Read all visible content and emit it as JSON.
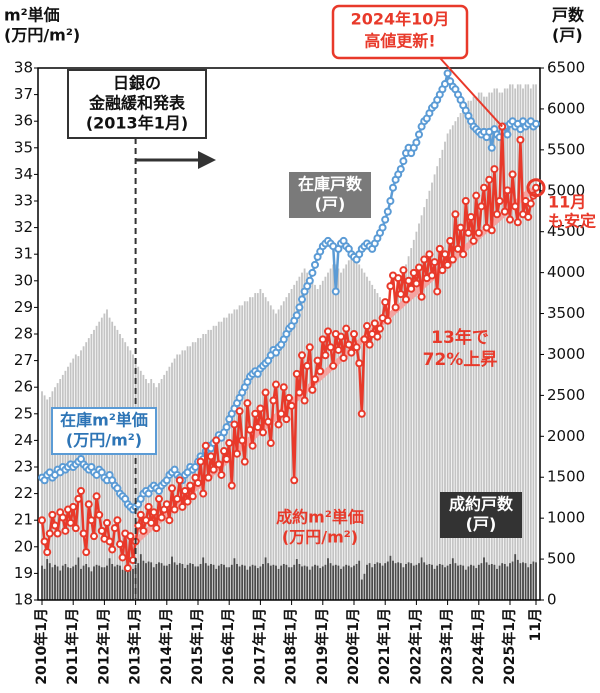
{
  "chart_data": {
    "type": "combo",
    "y_label": [
      "m²単価",
      "(万円/m²)"
    ],
    "y2_label": [
      "戸数",
      "(戸)"
    ],
    "categories": [
      "2010年1月",
      null,
      null,
      null,
      null,
      null,
      null,
      null,
      null,
      null,
      null,
      null,
      "2011年1月",
      null,
      null,
      null,
      null,
      null,
      null,
      null,
      null,
      null,
      null,
      null,
      "2012年1月",
      null,
      null,
      null,
      null,
      null,
      null,
      null,
      null,
      null,
      null,
      null,
      "2013年1月",
      null,
      null,
      null,
      null,
      null,
      null,
      null,
      null,
      null,
      null,
      null,
      "2014年1月",
      null,
      null,
      null,
      null,
      null,
      null,
      null,
      null,
      null,
      null,
      null,
      "2015年1月",
      null,
      null,
      null,
      null,
      null,
      null,
      null,
      null,
      null,
      null,
      null,
      "2016年1月",
      null,
      null,
      null,
      null,
      null,
      null,
      null,
      null,
      null,
      null,
      null,
      "2017年1月",
      null,
      null,
      null,
      null,
      null,
      null,
      null,
      null,
      null,
      null,
      null,
      "2018年1月",
      null,
      null,
      null,
      null,
      null,
      null,
      null,
      null,
      null,
      null,
      null,
      "2019年1月",
      null,
      null,
      null,
      null,
      null,
      null,
      null,
      null,
      null,
      null,
      null,
      "2020年1月",
      null,
      null,
      null,
      null,
      null,
      null,
      null,
      null,
      null,
      null,
      null,
      "2021年1月",
      null,
      null,
      null,
      null,
      null,
      null,
      null,
      null,
      null,
      null,
      null,
      "2022年1月",
      null,
      null,
      null,
      null,
      null,
      null,
      null,
      null,
      null,
      null,
      null,
      "2023年1月",
      null,
      null,
      null,
      null,
      null,
      null,
      null,
      null,
      null,
      null,
      null,
      "2024年1月",
      null,
      null,
      null,
      null,
      null,
      null,
      null,
      null,
      null,
      null,
      null,
      "2025年1月",
      null,
      null,
      null,
      null,
      null,
      null,
      null,
      null,
      null,
      "11月"
    ],
    "ylim": [
      18,
      38
    ],
    "yticks": [
      18,
      19,
      20,
      21,
      22,
      23,
      24,
      25,
      26,
      27,
      28,
      29,
      30,
      31,
      32,
      33,
      34,
      35,
      36,
      37,
      38
    ],
    "y2lim": [
      0,
      6500
    ],
    "y2ticks": [
      0,
      500,
      1000,
      1500,
      2000,
      2500,
      3000,
      3500,
      4000,
      4500,
      5000,
      5500,
      6000,
      6500
    ],
    "series": [
      {
        "name": "在庫戸数",
        "unit": "(戸)",
        "type": "bar",
        "axis": "y2",
        "color": "#c4c4c4",
        "values": [
          2550,
          2500,
          2450,
          2480,
          2550,
          2600,
          2650,
          2700,
          2750,
          2800,
          2850,
          2900,
          2950,
          3000,
          2980,
          3050,
          3100,
          3150,
          3200,
          3250,
          3300,
          3350,
          3400,
          3450,
          3500,
          3550,
          3450,
          3400,
          3350,
          3300,
          3250,
          3200,
          3150,
          3100,
          3050,
          3000,
          2900,
          2850,
          2800,
          2750,
          2700,
          2650,
          2700,
          2650,
          2600,
          2650,
          2700,
          2750,
          2800,
          2850,
          2900,
          2950,
          3000,
          3000,
          3050,
          3050,
          3100,
          3100,
          3150,
          3150,
          3200,
          3200,
          3250,
          3250,
          3300,
          3300,
          3350,
          3350,
          3400,
          3400,
          3450,
          3450,
          3500,
          3500,
          3550,
          3550,
          3600,
          3600,
          3650,
          3650,
          3700,
          3700,
          3750,
          3750,
          3800,
          3750,
          3700,
          3650,
          3600,
          3550,
          3500,
          3550,
          3600,
          3650,
          3700,
          3750,
          3800,
          3850,
          3900,
          3950,
          4000,
          4050,
          4000,
          3950,
          3900,
          3850,
          3800,
          3850,
          3900,
          3950,
          4000,
          4050,
          4100,
          4100,
          4050,
          4000,
          4050,
          4100,
          4150,
          4200,
          4200,
          4150,
          4100,
          4050,
          4000,
          3950,
          3900,
          3850,
          3800,
          3750,
          3700,
          3650,
          3600,
          3550,
          3500,
          3600,
          3700,
          3800,
          3900,
          4000,
          4100,
          4200,
          4300,
          4400,
          4500,
          4600,
          4700,
          4800,
          4900,
          5000,
          5100,
          5200,
          5300,
          5400,
          5500,
          5600,
          5700,
          5750,
          5800,
          5850,
          5900,
          5950,
          6000,
          6050,
          6100,
          6100,
          6150,
          6150,
          6200,
          6200,
          6150,
          6150,
          6200,
          6200,
          6250,
          6250,
          6200,
          6200,
          6250,
          6250,
          6300,
          6300,
          6250,
          6300,
          6300,
          6250,
          6300,
          6300,
          6250,
          6300,
          6300
        ]
      },
      {
        "name": "成約戸数",
        "unit": "(戸)",
        "type": "bar",
        "axis": "y2",
        "color": "#4a4a4a",
        "values": [
          420,
          380,
          500,
          450,
          400,
          430,
          410,
          360,
          420,
          440,
          400,
          390,
          410,
          430,
          520,
          380,
          420,
          440,
          400,
          350,
          410,
          430,
          420,
          400,
          400,
          420,
          510,
          440,
          410,
          430,
          420,
          370,
          400,
          420,
          410,
          380,
          430,
          450,
          560,
          480,
          450,
          470,
          460,
          400,
          440,
          460,
          450,
          420,
          420,
          440,
          530,
          460,
          430,
          450,
          440,
          390,
          430,
          450,
          440,
          410,
          410,
          440,
          520,
          450,
          420,
          440,
          430,
          380,
          420,
          440,
          430,
          400,
          400,
          430,
          510,
          440,
          410,
          430,
          420,
          370,
          410,
          430,
          420,
          390,
          410,
          440,
          520,
          450,
          420,
          430,
          420,
          380,
          420,
          440,
          430,
          400,
          400,
          430,
          500,
          440,
          410,
          420,
          410,
          370,
          410,
          430,
          420,
          390,
          410,
          430,
          510,
          450,
          420,
          430,
          420,
          380,
          410,
          430,
          420,
          400,
          420,
          440,
          480,
          250,
          320,
          430,
          450,
          400,
          440,
          460,
          450,
          420,
          450,
          470,
          540,
          480,
          450,
          460,
          450,
          400,
          440,
          460,
          450,
          420,
          430,
          450,
          520,
          460,
          430,
          440,
          430,
          380,
          420,
          440,
          430,
          400,
          420,
          440,
          510,
          450,
          420,
          430,
          420,
          370,
          410,
          430,
          420,
          390,
          430,
          450,
          520,
          460,
          430,
          440,
          430,
          380,
          420,
          450,
          440,
          410,
          450,
          470,
          560,
          490,
          450,
          460,
          450,
          400,
          440,
          470,
          460
        ]
      },
      {
        "name": "在庫m²単価",
        "unit": "(万円/m²)",
        "type": "line",
        "axis": "y",
        "color": "#5b9bd5",
        "values": [
          22.6,
          22.5,
          22.7,
          22.8,
          22.6,
          22.7,
          22.9,
          22.8,
          23.0,
          22.9,
          23.0,
          23.1,
          23.0,
          23.1,
          23.2,
          23.3,
          23.1,
          23.0,
          22.9,
          23.0,
          22.8,
          22.7,
          22.9,
          22.8,
          22.6,
          22.5,
          22.7,
          22.5,
          22.3,
          22.2,
          22.0,
          21.9,
          21.8,
          21.6,
          21.5,
          21.4,
          21.5,
          21.6,
          21.8,
          22.0,
          22.1,
          22.0,
          22.2,
          22.3,
          22.2,
          22.1,
          22.3,
          22.4,
          22.5,
          22.7,
          22.8,
          22.9,
          22.7,
          22.6,
          22.5,
          22.7,
          22.8,
          23.0,
          22.9,
          23.0,
          23.2,
          23.4,
          23.3,
          23.6,
          23.8,
          23.7,
          23.9,
          24.0,
          24.2,
          24.1,
          24.3,
          24.5,
          24.8,
          25.0,
          25.2,
          25.4,
          25.6,
          25.8,
          26.0,
          26.2,
          26.4,
          26.5,
          26.6,
          26.5,
          26.7,
          26.8,
          26.9,
          27.0,
          27.2,
          27.4,
          27.3,
          27.5,
          27.6,
          27.8,
          28.0,
          28.2,
          28.3,
          28.5,
          28.7,
          29.0,
          29.3,
          29.6,
          29.8,
          30.0,
          30.3,
          30.6,
          30.9,
          31.1,
          31.3,
          31.4,
          31.5,
          31.4,
          31.3,
          29.6,
          31.2,
          31.4,
          31.5,
          31.3,
          31.2,
          31.0,
          30.9,
          30.8,
          31.0,
          31.2,
          31.3,
          31.4,
          31.3,
          31.2,
          31.4,
          31.6,
          31.8,
          32.0,
          32.3,
          32.6,
          33.0,
          33.5,
          33.8,
          34.0,
          34.2,
          34.5,
          34.8,
          35.0,
          34.8,
          35.0,
          35.2,
          35.5,
          35.8,
          36.0,
          36.1,
          36.3,
          36.5,
          36.6,
          36.8,
          37.0,
          37.2,
          37.4,
          37.8,
          37.5,
          37.3,
          37.2,
          37.0,
          36.8,
          36.6,
          36.4,
          36.2,
          36.0,
          35.8,
          35.7,
          35.6,
          35.5,
          35.6,
          35.4,
          35.6,
          35.0,
          35.7,
          35.5,
          35.4,
          35.6,
          35.8,
          35.5,
          35.9,
          36.0,
          35.8,
          35.9,
          35.7,
          36.0,
          35.8,
          35.9,
          36.0,
          35.8,
          35.9
        ]
      },
      {
        "name": "成約m²単価",
        "unit": "(万円/m²)",
        "type": "line",
        "axis": "y",
        "color": "#e8392a",
        "values": [
          21.0,
          20.2,
          19.8,
          20.5,
          21.2,
          20.8,
          20.5,
          21.3,
          21.1,
          20.6,
          21.4,
          20.9,
          21.5,
          20.7,
          21.8,
          22.1,
          20.5,
          19.8,
          21.6,
          21.0,
          20.4,
          21.9,
          21.2,
          20.6,
          20.3,
          20.9,
          20.2,
          19.9,
          20.7,
          21.0,
          20.1,
          19.6,
          20.5,
          19.2,
          20.4,
          19.5,
          20.2,
          20.8,
          21.2,
          20.6,
          21.0,
          21.5,
          20.9,
          21.3,
          20.7,
          21.8,
          21.1,
          21.4,
          21.6,
          21.0,
          22.2,
          21.4,
          21.8,
          22.5,
          21.5,
          22.1,
          21.7,
          22.3,
          21.9,
          22.6,
          22.4,
          23.2,
          22.0,
          23.8,
          22.6,
          23.4,
          22.9,
          24.0,
          23.1,
          22.7,
          23.6,
          23.3,
          23.9,
          22.3,
          24.6,
          23.5,
          25.1,
          24.0,
          23.2,
          25.4,
          24.4,
          23.8,
          25.0,
          24.5,
          25.2,
          24.3,
          25.8,
          24.7,
          23.9,
          25.5,
          26.1,
          24.6,
          25.0,
          26.0,
          24.8,
          25.6,
          25.3,
          22.5,
          26.5,
          25.8,
          27.2,
          25.5,
          26.8,
          27.5,
          25.9,
          26.3,
          27.0,
          26.6,
          27.8,
          27.2,
          28.1,
          27.5,
          26.8,
          28.0,
          27.4,
          27.9,
          27.1,
          28.2,
          27.6,
          27.3,
          28.0,
          27.5,
          26.9,
          25.0,
          27.8,
          28.3,
          27.6,
          28.0,
          28.4,
          27.9,
          28.2,
          28.6,
          29.2,
          28.5,
          29.8,
          30.2,
          29.0,
          30.1,
          29.5,
          30.4,
          29.3,
          30.0,
          29.7,
          30.3,
          29.9,
          30.5,
          29.4,
          30.8,
          30.1,
          31.0,
          30.2,
          30.7,
          29.6,
          31.2,
          30.4,
          31.0,
          30.6,
          31.5,
          30.8,
          32.5,
          31.2,
          32.0,
          31.0,
          33.0,
          31.8,
          32.4,
          31.5,
          33.2,
          31.8,
          32.8,
          33.5,
          32.0,
          33.8,
          31.9,
          34.2,
          32.5,
          33.0,
          35.8,
          32.6,
          33.4,
          32.3,
          34.0,
          32.8,
          32.2,
          35.3,
          32.5,
          33.0,
          32.4,
          32.9,
          33.2,
          33.5
        ]
      }
    ],
    "annotations": {
      "boj": [
        "日銀の",
        "金融緩和発表",
        "(2013年1月)"
      ],
      "peak": [
        "2024年10月",
        "高値更新!"
      ],
      "nov": [
        "11月",
        "も安定"
      ],
      "rise": [
        "13年で",
        "72%上昇"
      ]
    }
  }
}
